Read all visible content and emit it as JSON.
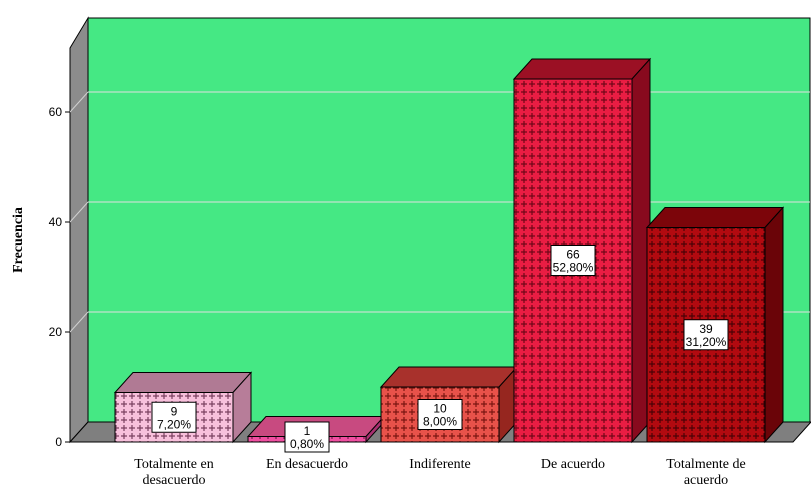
{
  "chart_data": {
    "type": "bar",
    "style": "3d",
    "ylabel": "Frecuencia",
    "xlabel": "",
    "ylim": [
      0,
      70
    ],
    "yticks": [
      0,
      20,
      40,
      60
    ],
    "grid": true,
    "categories": [
      "Totalmente en desacuerdo",
      "En desacuerdo",
      "Indiferente",
      "De acuerdo",
      "Totalmente de acuerdo"
    ],
    "category_lines": [
      [
        "Totalmente en",
        "desacuerdo"
      ],
      [
        "En desacuerdo"
      ],
      [
        "Indiferente"
      ],
      [
        "De acuerdo"
      ],
      [
        "Totalmente de",
        "acuerdo"
      ]
    ],
    "values": [
      9,
      1,
      10,
      66,
      39
    ],
    "percent_labels": [
      "7,20%",
      "0,80%",
      "8,00%",
      "52,80%",
      "31,20%"
    ],
    "count_labels": [
      "9",
      "1",
      "10",
      "66",
      "39"
    ],
    "colors": {
      "plot_background": "#45e884",
      "floor": "#7f7f7f",
      "wall_side": "#8c8c8c",
      "bars": [
        {
          "front": "#f8c0dc",
          "top": "#b07a94",
          "side": "#b77d99",
          "pattern": "#7a4060"
        },
        {
          "front": "#f04fa1",
          "top": "#c84a80",
          "side": "#a83070",
          "pattern": "#7a1c50"
        },
        {
          "front": "#e8524a",
          "top": "#a8312c",
          "side": "#96261f",
          "pattern": "#7a1510"
        },
        {
          "front": "#ea1d43",
          "top": "#9b1024",
          "side": "#880a1e",
          "pattern": "#700617"
        },
        {
          "front": "#b20a10",
          "top": "#7c050a",
          "side": "#6a0408",
          "pattern": "#4a0206"
        }
      ]
    }
  }
}
